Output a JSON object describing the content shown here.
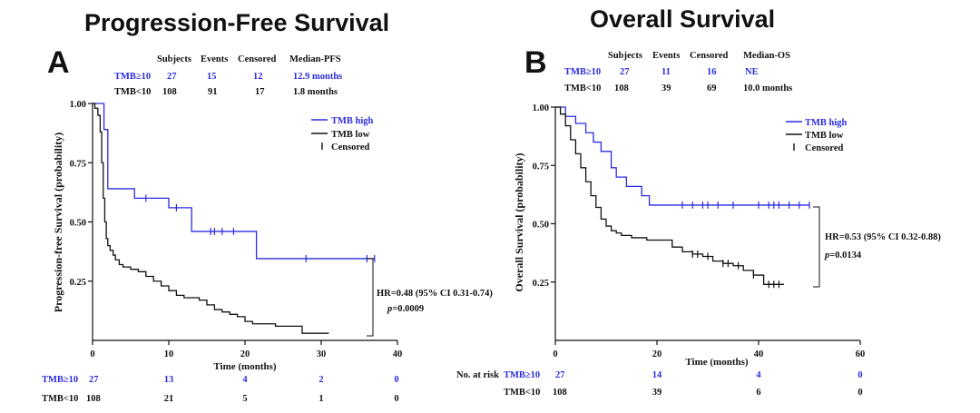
{
  "chart_data": [
    {
      "type": "line",
      "panel": "A",
      "title": "Progression-Free Survival",
      "xlabel": "Time (months)",
      "ylabel": "Progression-free Survival (probability)",
      "xlim": [
        0,
        40
      ],
      "ylim": [
        0,
        1.0
      ],
      "xticks": [
        0,
        10,
        20,
        30,
        40
      ],
      "yticks": [
        0.25,
        0.5,
        0.75,
        1.0
      ],
      "xtick_labels": [
        "0",
        "10",
        "20",
        "30",
        "40"
      ],
      "ytick_labels": [
        "0.25",
        "0.50",
        "0.75",
        "1.00"
      ],
      "summary_table": {
        "headers": [
          "Subjects",
          "Events",
          "Censored",
          "Median-PFS"
        ],
        "rows": [
          {
            "label": "TMB≥10",
            "values": [
              "27",
              "15",
              "12",
              "12.9 months"
            ],
            "color": "#2b2be0"
          },
          {
            "label": "TMB<10",
            "values": [
              "108",
              "91",
              "17",
              "1.8 months"
            ],
            "color": "#111111"
          }
        ]
      },
      "legend": [
        "TMB high",
        "TMB low",
        "Censored"
      ],
      "hr_text": "HR=0.48 (95% CI 0.31-0.74)",
      "p_label": "p",
      "p_value": "=0.0009",
      "series": [
        {
          "name": "TMB high",
          "color": "#2b2be0",
          "x": [
            0,
            1.5,
            2,
            5.5,
            10,
            13,
            21.5,
            37
          ],
          "y": [
            1.0,
            0.89,
            0.64,
            0.6,
            0.56,
            0.46,
            0.345,
            0.345
          ],
          "censor_x": [
            7,
            11,
            15.5,
            16,
            17,
            18.5,
            28,
            36,
            37
          ]
        },
        {
          "name": "TMB low",
          "color": "#111111",
          "x": [
            0,
            0.3,
            0.7,
            1,
            1.2,
            1.4,
            1.6,
            1.8,
            2,
            2.3,
            2.7,
            3,
            3.5,
            4,
            5,
            6,
            7,
            8,
            9,
            10,
            11,
            12,
            13,
            14,
            15,
            16,
            17,
            18,
            19,
            20,
            21,
            22,
            23,
            24,
            25,
            26,
            27.5,
            31
          ],
          "y": [
            1.0,
            0.98,
            0.95,
            0.88,
            0.75,
            0.6,
            0.5,
            0.43,
            0.4,
            0.38,
            0.36,
            0.34,
            0.32,
            0.31,
            0.3,
            0.29,
            0.27,
            0.25,
            0.23,
            0.21,
            0.19,
            0.18,
            0.18,
            0.17,
            0.15,
            0.13,
            0.12,
            0.11,
            0.1,
            0.08,
            0.07,
            0.07,
            0.07,
            0.06,
            0.06,
            0.06,
            0.03,
            0.03
          ],
          "censor_x": []
        }
      ],
      "risk_table": {
        "rows": [
          {
            "label": "TMB≥10",
            "first": "27",
            "values": [
              "13",
              "4",
              "2",
              "0"
            ],
            "color": "#2b2be0"
          },
          {
            "label": "TMB<10",
            "first": "108",
            "values": [
              "21",
              "5",
              "1",
              "0"
            ],
            "color": "#111111"
          }
        ]
      }
    },
    {
      "type": "line",
      "panel": "B",
      "title": "Overall Survival",
      "xlabel": "Time (months)",
      "ylabel": "Overall Survival (probability)",
      "xlim": [
        0,
        60
      ],
      "ylim": [
        0,
        1.0
      ],
      "xticks": [
        0,
        20,
        40,
        60
      ],
      "yticks": [
        0.25,
        0.5,
        0.75,
        1.0
      ],
      "xtick_labels": [
        "0",
        "20",
        "40",
        "60"
      ],
      "ytick_labels": [
        "0.25",
        "0.50",
        "0.75",
        "1.00"
      ],
      "summary_table": {
        "headers": [
          "Subjects",
          "Events",
          "Censored",
          "Median-OS"
        ],
        "rows": [
          {
            "label": "TMB≥10",
            "values": [
              "27",
              "11",
              "16",
              "NE"
            ],
            "color": "#2b2be0"
          },
          {
            "label": "TMB<10",
            "values": [
              "108",
              "39",
              "69",
              "10.0 months"
            ],
            "color": "#111111"
          }
        ]
      },
      "legend": [
        "TMB high",
        "TMB low",
        "Censored"
      ],
      "hr_text": "HR=0.53  (95% CI 0.32-0.88)",
      "p_label": "p",
      "p_value": "=0.0134",
      "series": [
        {
          "name": "TMB high",
          "color": "#2b2be0",
          "x": [
            0,
            2,
            4,
            6,
            7.5,
            9,
            11,
            12,
            14,
            17,
            18.5,
            50
          ],
          "y": [
            1.0,
            0.96,
            0.93,
            0.89,
            0.85,
            0.81,
            0.74,
            0.7,
            0.66,
            0.62,
            0.58,
            0.58
          ],
          "censor_x": [
            25,
            27,
            29,
            30,
            32,
            35,
            40,
            42,
            43,
            44,
            46,
            48,
            50
          ]
        },
        {
          "name": "TMB low",
          "color": "#111111",
          "x": [
            0,
            1,
            2,
            3,
            4,
            5,
            6,
            7,
            8,
            9,
            10,
            11,
            12,
            13,
            14,
            15,
            16,
            18,
            20,
            23,
            25,
            27,
            29,
            31,
            33,
            35,
            37,
            39,
            41,
            45
          ],
          "y": [
            1.0,
            0.97,
            0.92,
            0.86,
            0.8,
            0.74,
            0.68,
            0.62,
            0.57,
            0.52,
            0.49,
            0.47,
            0.46,
            0.45,
            0.45,
            0.44,
            0.44,
            0.43,
            0.43,
            0.4,
            0.38,
            0.37,
            0.36,
            0.34,
            0.33,
            0.32,
            0.3,
            0.28,
            0.24,
            0.24
          ],
          "censor_x": [
            27,
            28,
            30,
            33,
            34,
            36,
            39,
            42,
            43,
            44
          ]
        }
      ],
      "risk_table": {
        "header": "No. at risk",
        "rows": [
          {
            "label": "TMB≥10",
            "first": "27",
            "values": [
              "14",
              "4",
              "0"
            ],
            "color": "#2b2be0"
          },
          {
            "label": "TMB<10",
            "first": "108",
            "values": [
              "39",
              "6",
              "0"
            ],
            "color": "#111111"
          }
        ]
      }
    }
  ]
}
